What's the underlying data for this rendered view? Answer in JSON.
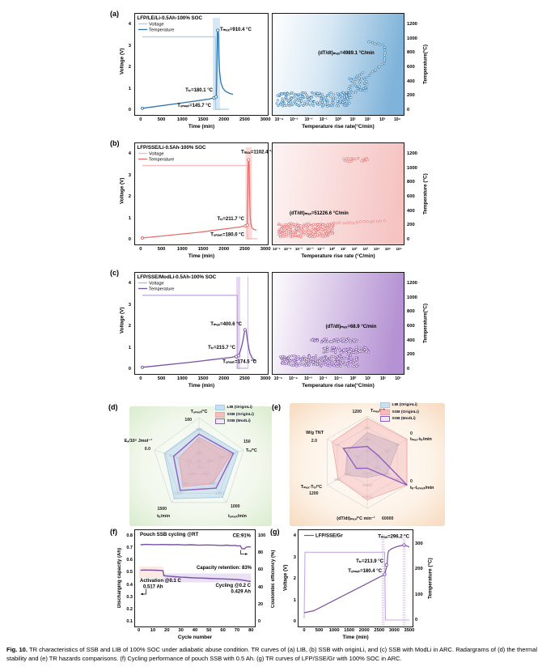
{
  "p": {
    "a": {
      "label": "(a)",
      "title": "LFP/LE/Li-0.5Ah-100% SOC",
      "legend": {
        "voltage": "Voltage",
        "temperature": "Temperature"
      },
      "left": {
        "ylabel": "Voltage (V)",
        "yticks": [
          "4",
          "3",
          "2",
          "1",
          "0"
        ],
        "xlabel": "Time (min)",
        "xticks": [
          "0",
          "500",
          "1000",
          "1500",
          "2000",
          "2500",
          "3000"
        ],
        "ann_tmax": "Tₘₐₓ=910.4 °C",
        "ann_ttr": "Tₜᵣ=180.1 °C",
        "ann_tonset": "Tₒₙₛₑₜ=145.7 °C"
      },
      "right": {
        "ylabel": "Temperature(°C)",
        "yticks": [
          "1200",
          "1000",
          "800",
          "600",
          "400",
          "200",
          "0"
        ],
        "xlabel": "Temperature rise rate(°C/min)",
        "xticks": [
          "10⁻⁴",
          "10⁻³",
          "10⁻²",
          "10⁻¹",
          "10⁰",
          "10¹",
          "10²",
          "10³",
          "10⁴"
        ],
        "ann_rate": "(dT/dt)ₘₐₓ=4989.1 °C/min"
      }
    },
    "b": {
      "label": "(b)",
      "title": "LFP/SSE/Li-0.5Ah-100% SOC",
      "legend": {
        "voltage": "Voltage",
        "temperature": "Temperature"
      },
      "left": {
        "ylabel": "Voltage (V)",
        "yticks": [
          "4",
          "3",
          "2",
          "1",
          "0"
        ],
        "xlabel": "Time (min)",
        "xticks": [
          "0",
          "500",
          "1000",
          "1500",
          "2000",
          "2500",
          "3000"
        ],
        "ann_tmax": "Tₘₐₓ=1102.4 °C",
        "ann_ttr": "Tₜᵣ=211.7 °C",
        "ann_tonset": "Tₒₙₛₑₜ=180.0 °C"
      },
      "right": {
        "ylabel": "Temperature (°C)",
        "yticks": [
          "1200",
          "1000",
          "800",
          "600",
          "400",
          "200",
          "0"
        ],
        "xlabel": "Temperature rise rate (°C/min)",
        "xticks": [
          "10⁻⁵",
          "10⁻⁴",
          "10⁻³",
          "10⁻²",
          "10⁻¹",
          "10⁰",
          "10¹",
          "10²",
          "10³",
          "10⁴",
          "10⁵",
          "10⁶"
        ],
        "ann_rate": "(dT/dt)ₘₐₓ=51226.6 °C/min"
      }
    },
    "c": {
      "label": "(c)",
      "title": "LFP/SSE/ModLi-0.5Ah-100% SOC",
      "legend": {
        "voltage": "Voltage",
        "temperature": "Temperature"
      },
      "left": {
        "ylabel": "Voltage (V)",
        "yticks": [
          "4",
          "3",
          "2",
          "1",
          "0"
        ],
        "xlabel": "Time (min)",
        "xticks": [
          "0",
          "500",
          "1000",
          "1500",
          "2000",
          "2500",
          "3000"
        ],
        "ann_tmax": "Tₘₐₓ=400.6 °C",
        "ann_ttr": "Tₜᵣ=215.7 °C",
        "ann_tonset": "Tₒₙₛₑₜ=174.5 °C"
      },
      "right": {
        "ylabel": "Temperature(°C)",
        "yticks": [
          "1200",
          "1000",
          "800",
          "600",
          "400",
          "200",
          "0"
        ],
        "xlabel": "Temperature rise rate(°C/min)",
        "xticks": [
          "10⁻⁵",
          "10⁻⁴",
          "10⁻³",
          "10⁻²",
          "10⁻¹",
          "10⁰",
          "10¹",
          "10²",
          "10³"
        ],
        "ann_rate": "(dT/dt)ₘₐₓ=68.9 °C/min"
      }
    },
    "d": {
      "label": "(d)",
      "legend": [
        "LIB (OriginLi)",
        "SSB (OriginLi)",
        "SSB (ModLi)"
      ],
      "axes": [
        "Tₒₙₛₑₜ/°C",
        "Tₜᵣ/°C",
        "tₒₙₛₑₜ/min",
        "tₜᵣ/min",
        "Eₐ/10⁵ Jmol⁻¹"
      ],
      "radar": {
        "ticks": [
          [
            "100",
            "150",
            "200",
            "250",
            "300"
          ],
          [
            "150",
            "200",
            "250",
            "300"
          ],
          [
            "1000",
            "1500",
            "2000",
            "2500",
            "3000"
          ],
          [
            "1500",
            "2000",
            "2500",
            "3000"
          ],
          [
            "0.0",
            "0.8",
            "1.6"
          ]
        ]
      }
    },
    "e": {
      "label": "(e)",
      "legend": [
        "LIB (OriginLi)",
        "SSB (OriginLi)",
        "SSB (ModLi)"
      ],
      "axes": [
        "Tₘₐₓ/°C",
        "tₘₐₓ-tₜᵣ/min",
        "tₜᵣ-tₒₙₛₑₜ/min",
        "(dT/dt)ₘₐₓ/°C min⁻¹",
        "Tₘₐₓ-Tₜᵣ/°C",
        "W/g TNT"
      ],
      "radar": {
        "ticks": [
          [
            "1200",
            "900",
            "600",
            "300"
          ],
          [
            "0",
            "75",
            "150",
            "225"
          ],
          [
            "0",
            "75",
            "150",
            "225"
          ],
          [
            "60000",
            "45000",
            "30000",
            "15000"
          ],
          [
            "1200",
            "900",
            "600",
            "300"
          ],
          [
            "2.0",
            "1.5",
            "1.0",
            "0.5"
          ]
        ]
      }
    },
    "f": {
      "label": "(f)",
      "title": "Pouch SSB cycling @RT",
      "ylabel_left": "Discharging capacity (Ah)",
      "yticks_left": [
        "0.8",
        "0.7",
        "0.6",
        "0.5",
        "0.4",
        "0.3",
        "0.2",
        "0.1"
      ],
      "ylabel_right": "Coulombic efficiency (%)",
      "yticks_right": [
        "100",
        "80",
        "60",
        "40",
        "20",
        "0"
      ],
      "xlabel": "Cycle number",
      "xticks": [
        "0",
        "10",
        "20",
        "30",
        "40",
        "50",
        "60",
        "70",
        "80"
      ],
      "ann_ce": "CE:91%",
      "ann_retention": "Capacity retention: 83%",
      "ann_activation": "Activation @0.1 C",
      "ann_activation_val": "0.517 Ah",
      "ann_cycling": "Cycling @0.2 C",
      "ann_cycling_val": "0.429 Ah"
    },
    "g": {
      "label": "(g)",
      "legend": "LFP/SSE/Gr",
      "ylabel_left": "Voltage (V)",
      "yticks_left": [
        "4",
        "3",
        "2",
        "1",
        "0"
      ],
      "ylabel_right": "Temperature (°C)",
      "yticks_right": [
        "300",
        "200",
        "100",
        "0"
      ],
      "xlabel": "Time (min)",
      "xticks": [
        "0",
        "500",
        "1000",
        "1500",
        "2000",
        "2500",
        "3000",
        "3500"
      ],
      "ann_tmax": "Tₘₐₓ=296.2 °C",
      "ann_ttr": "Tₜᵣ=213.9 °C",
      "ann_tonset": "Tₒₙₛₑₜ=180.4 °C"
    }
  },
  "caption": {
    "label": "Fig. 10.",
    "text": "TR characteristics of SSB and LIB of 100% SOC under adiabatic abuse condition. TR curves of (a) LIB, (b) SSB with originLi, and (c) SSB with ModLi in ARC. Radargrams of (d) the thermal stability and (e) TR hazards comparisons. (f) Cycling performance of pouch SSB with 0.5 Ah. (g) TR curves of LFP/SSE/Gr with 100% SOC in ARC."
  },
  "chart_data": [
    {
      "panel": "a",
      "type": "line",
      "title": "LFP/LE/Li-0.5Ah-100% SOC",
      "series": [
        "Voltage",
        "Temperature"
      ],
      "xlabel": "Time (min)",
      "x_range": [
        0,
        3000
      ],
      "ylabel_left": "Voltage (V)",
      "y_range_left": [
        0,
        4
      ],
      "voltage_plateau_V": 3.4,
      "T_onset_C": 145.7,
      "T_tr_C": 180.1,
      "T_max_C": 910.4,
      "tr_event_time_min": 1800
    },
    {
      "panel": "a-rate",
      "type": "scatter",
      "xlabel": "Temperature rise rate(°C/min)",
      "x_log_range": [
        0.0001,
        10000.0
      ],
      "ylabel": "Temperature(°C)",
      "y_range": [
        0,
        1200
      ],
      "dTdt_max_C_per_min": 4989.1
    },
    {
      "panel": "b",
      "type": "line",
      "title": "LFP/SSE/Li-0.5Ah-100% SOC",
      "series": [
        "Voltage",
        "Temperature"
      ],
      "xlabel": "Time (min)",
      "x_range": [
        0,
        3000
      ],
      "ylabel_left": "Voltage (V)",
      "y_range_left": [
        0,
        4
      ],
      "voltage_plateau_V": 3.45,
      "T_onset_C": 180.0,
      "T_tr_C": 211.7,
      "T_max_C": 1102.4,
      "tr_event_time_min": 2650
    },
    {
      "panel": "b-rate",
      "type": "scatter",
      "xlabel": "Temperature rise rate (°C/min)",
      "x_log_range": [
        1e-05,
        1000000.0
      ],
      "ylabel": "Temperature (°C)",
      "y_range": [
        0,
        1200
      ],
      "dTdt_max_C_per_min": 51226.6
    },
    {
      "panel": "c",
      "type": "line",
      "title": "LFP/SSE/ModLi-0.5Ah-100% SOC",
      "series": [
        "Voltage",
        "Temperature"
      ],
      "xlabel": "Time (min)",
      "x_range": [
        0,
        3000
      ],
      "ylabel_left": "Voltage (V)",
      "y_range_left": [
        0,
        4
      ],
      "voltage_plateau_V": 3.42,
      "T_onset_C": 174.5,
      "T_tr_C": 215.7,
      "T_max_C": 400.6,
      "tr_event_time_min": 2400
    },
    {
      "panel": "c-rate",
      "type": "scatter",
      "xlabel": "Temperature rise rate(°C/min)",
      "x_log_range": [
        1e-05,
        1000.0
      ],
      "ylabel": "Temperature(°C)",
      "y_range": [
        0,
        1200
      ],
      "dTdt_max_C_per_min": 68.9
    },
    {
      "panel": "d",
      "type": "radar",
      "series": [
        "LIB (OriginLi)",
        "SSB (OriginLi)",
        "SSB (ModLi)"
      ],
      "axes": [
        {
          "label": "Tonset/°C",
          "ticks": [
            100,
            150,
            200,
            250,
            300
          ]
        },
        {
          "label": "Ttr/°C",
          "ticks": [
            150,
            200,
            250,
            300
          ]
        },
        {
          "label": "tonset/min",
          "ticks": [
            1000,
            1500,
            2000,
            2500,
            3000
          ]
        },
        {
          "label": "ttr/min",
          "ticks": [
            1500,
            2000,
            2500,
            3000
          ]
        },
        {
          "label": "Ea/10^5 Jmol^-1",
          "ticks": [
            0.0,
            0.8,
            1.6
          ]
        }
      ],
      "known_values": {
        "LIB (OriginLi)": {
          "Tonset_C": 145.7,
          "Ttr_C": 180.1
        },
        "SSB (OriginLi)": {
          "Tonset_C": 180.0,
          "Ttr_C": 211.7
        },
        "SSB (ModLi)": {
          "Tonset_C": 174.5,
          "Ttr_C": 215.7
        }
      }
    },
    {
      "panel": "e",
      "type": "radar",
      "series": [
        "LIB (OriginLi)",
        "SSB (OriginLi)",
        "SSB (ModLi)"
      ],
      "axes": [
        {
          "label": "Tmax/°C",
          "ticks": [
            1200,
            900,
            600,
            300
          ]
        },
        {
          "label": "tmax-ttr/min",
          "ticks": [
            0,
            75,
            150,
            225
          ]
        },
        {
          "label": "ttr-tonset/min",
          "ticks": [
            0,
            75,
            150,
            225
          ]
        },
        {
          "label": "(dT/dt)max/°C min^-1",
          "ticks": [
            60000,
            45000,
            30000,
            15000
          ]
        },
        {
          "label": "Tmax-Ttr/°C",
          "ticks": [
            1200,
            900,
            600,
            300
          ]
        },
        {
          "label": "W/g TNT",
          "ticks": [
            2.0,
            1.5,
            1.0,
            0.5
          ]
        }
      ],
      "known_values": {
        "LIB (OriginLi)": {
          "Tmax_C": 910.4,
          "dTdt_max": 4989.1
        },
        "SSB (OriginLi)": {
          "Tmax_C": 1102.4,
          "dTdt_max": 51226.6
        },
        "SSB (ModLi)": {
          "Tmax_C": 400.6,
          "dTdt_max": 68.9
        }
      }
    },
    {
      "panel": "f",
      "type": "line",
      "title": "Pouch SSB cycling @RT",
      "xlabel": "Cycle number",
      "x_range": [
        0,
        80
      ],
      "ylabel_left": "Discharging capacity (Ah)",
      "y_range_left": [
        0.1,
        0.8
      ],
      "ylabel_right": "Coulombic efficiency (%)",
      "y_range_right": [
        0,
        100
      ],
      "activation": {
        "rate_C": 0.1,
        "capacity_Ah": 0.517,
        "cycle_span": [
          1,
          17
        ]
      },
      "cycling": {
        "rate_C": 0.2,
        "final_capacity_Ah": 0.429,
        "cycle_span": [
          18,
          80
        ]
      },
      "CE_percent": 91,
      "capacity_retention_percent": 83,
      "sampled": {
        "cycles": [
          1,
          5,
          10,
          15,
          17,
          20,
          30,
          40,
          50,
          60,
          70,
          75,
          80
        ],
        "capacity_Ah": [
          0.52,
          0.52,
          0.52,
          0.52,
          0.51,
          0.47,
          0.465,
          0.46,
          0.455,
          0.452,
          0.45,
          0.44,
          0.429
        ],
        "CE_percent": [
          97,
          98,
          98,
          98,
          98,
          97,
          97,
          97,
          97,
          97,
          96,
          92,
          91
        ]
      }
    },
    {
      "panel": "g",
      "type": "line",
      "series": [
        "LFP/SSE/Gr"
      ],
      "xlabel": "Time (min)",
      "x_range": [
        0,
        3500
      ],
      "ylabel_left": "Voltage (V)",
      "y_range_left": [
        0,
        4
      ],
      "ylabel_right": "Temperature (°C)",
      "y_range_right": [
        0,
        300
      ],
      "voltage_plateau_V": 3.35,
      "T_onset_C": 180.4,
      "T_tr_C": 213.9,
      "T_max_C": 296.2,
      "tr_event_time_min": 2750
    }
  ]
}
